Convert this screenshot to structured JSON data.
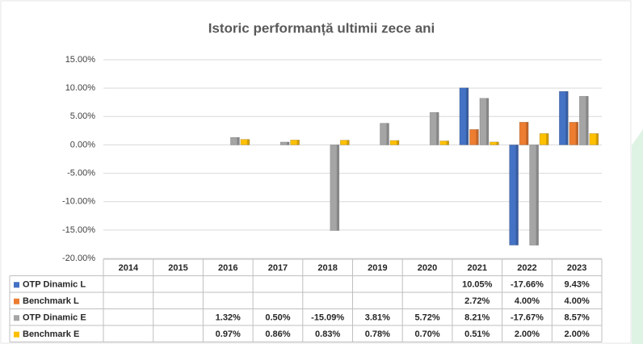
{
  "chart_data": {
    "type": "bar",
    "title": "Istoric performanță ultimii zece ani",
    "categories": [
      "2014",
      "2015",
      "2016",
      "2017",
      "2018",
      "2019",
      "2020",
      "2021",
      "2022",
      "2023"
    ],
    "series": [
      {
        "name": "OTP Dinamic L",
        "color": "#4472c4",
        "values": [
          null,
          null,
          null,
          null,
          null,
          null,
          null,
          10.05,
          -17.66,
          9.43
        ],
        "value_labels": [
          null,
          null,
          null,
          null,
          null,
          null,
          null,
          "10.05%",
          "-17.66%",
          "9.43%"
        ]
      },
      {
        "name": "Benchmark L",
        "color": "#ed7d31",
        "values": [
          null,
          null,
          null,
          null,
          null,
          null,
          null,
          2.72,
          4.0,
          4.0
        ],
        "value_labels": [
          null,
          null,
          null,
          null,
          null,
          null,
          null,
          "2.72%",
          "4.00%",
          "4.00%"
        ]
      },
      {
        "name": "OTP Dinamic E",
        "color": "#a5a5a5",
        "values": [
          null,
          null,
          1.32,
          0.5,
          -15.09,
          3.81,
          5.72,
          8.21,
          -17.67,
          8.57
        ],
        "value_labels": [
          null,
          null,
          "1.32%",
          "0.50%",
          "-15.09%",
          "3.81%",
          "5.72%",
          "8.21%",
          "-17.67%",
          "8.57%"
        ]
      },
      {
        "name": "Benchmark E",
        "color": "#ffc000",
        "values": [
          null,
          null,
          0.97,
          0.86,
          0.83,
          0.78,
          0.7,
          0.51,
          2.0,
          2.0
        ],
        "value_labels": [
          null,
          null,
          "0.97%",
          "0.86%",
          "0.83%",
          "0.78%",
          "0.70%",
          "0.51%",
          "2.00%",
          "2.00%"
        ]
      }
    ],
    "ylim": [
      -20,
      15
    ],
    "yticks": [
      {
        "value": 15,
        "label": "15.00%"
      },
      {
        "value": 10,
        "label": "10.00%"
      },
      {
        "value": 5,
        "label": "5.00%"
      },
      {
        "value": 0,
        "label": "0.00%"
      },
      {
        "value": -5,
        "label": "-5.00%"
      },
      {
        "value": -10,
        "label": "-10.00%"
      },
      {
        "value": -15,
        "label": "-15.00%"
      },
      {
        "value": -20,
        "label": "-20.00%"
      }
    ],
    "grid": true
  }
}
